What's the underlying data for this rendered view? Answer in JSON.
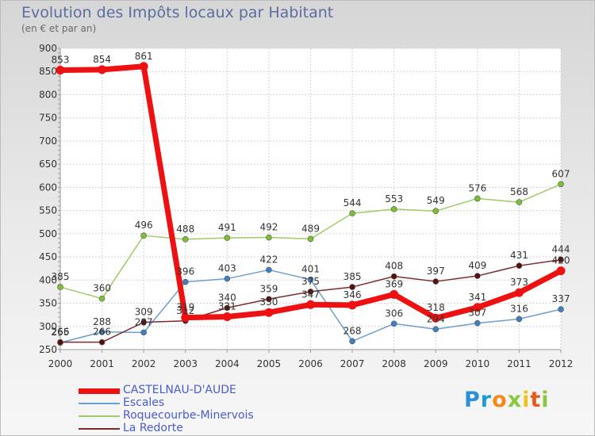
{
  "chart_data": {
    "type": "line",
    "title": "Evolution des Impôts locaux par Habitant",
    "subtitle": "(en € et par an)",
    "xlabel": "",
    "ylabel": "",
    "categories": [
      "2000",
      "2001",
      "2002",
      "2003",
      "2004",
      "2005",
      "2006",
      "2007",
      "2008",
      "2009",
      "2010",
      "2011",
      "2012"
    ],
    "y_ticks": [
      250,
      300,
      350,
      400,
      450,
      500,
      550,
      600,
      650,
      700,
      750,
      800,
      850,
      900
    ],
    "ylim": [
      250,
      900
    ],
    "grid": true,
    "legend_position": "bottom-left",
    "series": [
      {
        "name": "Roquecourbe-Minervois",
        "color": "#9ccc65",
        "marker": "#7cc034",
        "width": 1.5,
        "values": [
          385,
          360,
          496,
          488,
          491,
          492,
          489,
          544,
          553,
          549,
          576,
          568,
          607
        ],
        "labels": [
          "385",
          "360",
          "496",
          "488",
          "491",
          "492",
          "489",
          "544",
          "553",
          "549",
          "576",
          "568",
          "607"
        ]
      },
      {
        "name": "Escales",
        "color": "#6a9fd2",
        "marker": "#3f7fc2",
        "width": 1.5,
        "values": [
          265,
          288,
          287,
          396,
          403,
          422,
          401,
          268,
          306,
          294,
          307,
          316,
          337
        ],
        "labels": [
          "265",
          "288",
          "287",
          "396",
          "403",
          "422",
          "401",
          "268",
          "306",
          "294",
          "307",
          "316",
          "337"
        ]
      },
      {
        "name": "La Redorte",
        "color": "#7e2a2a",
        "marker": "#5a0e0e",
        "width": 1.5,
        "values": [
          266,
          266,
          309,
          312,
          340,
          359,
          375,
          385,
          408,
          397,
          409,
          431,
          444
        ],
        "labels": [
          "266",
          "266",
          "309",
          "312",
          "340",
          "359",
          "375",
          "385",
          "408",
          "397",
          "409",
          "431",
          "444"
        ]
      },
      {
        "name": "CASTELNAU-D'AUDE",
        "color": "#ee1111",
        "marker": "#ee1111",
        "width": 7,
        "values": [
          853,
          854,
          861,
          319,
          321,
          330,
          347,
          346,
          369,
          318,
          341,
          373,
          420
        ],
        "labels": [
          "853",
          "854",
          "861",
          "319",
          "321",
          "330",
          "347",
          "346",
          "369",
          "318",
          "341",
          "373",
          "420"
        ]
      }
    ]
  },
  "legend": {
    "items": [
      {
        "label": "CASTELNAU-D'AUDE",
        "color": "#ee1111",
        "thickness": 7
      },
      {
        "label": "Escales",
        "color": "#6a9fd2",
        "thickness": 2
      },
      {
        "label": "Roquecourbe-Minervois",
        "color": "#9ccc65",
        "thickness": 2
      },
      {
        "label": "La Redorte",
        "color": "#7e2a2a",
        "thickness": 2
      }
    ]
  },
  "brand": {
    "letters": [
      "P",
      "r",
      "o",
      "x",
      "i",
      "t",
      "i"
    ],
    "colors": [
      "#2b8fd6",
      "#1f9ad6",
      "#f28a1c",
      "#8cc63f",
      "#f2c21c",
      "#e8591c",
      "#8cc63f"
    ]
  }
}
